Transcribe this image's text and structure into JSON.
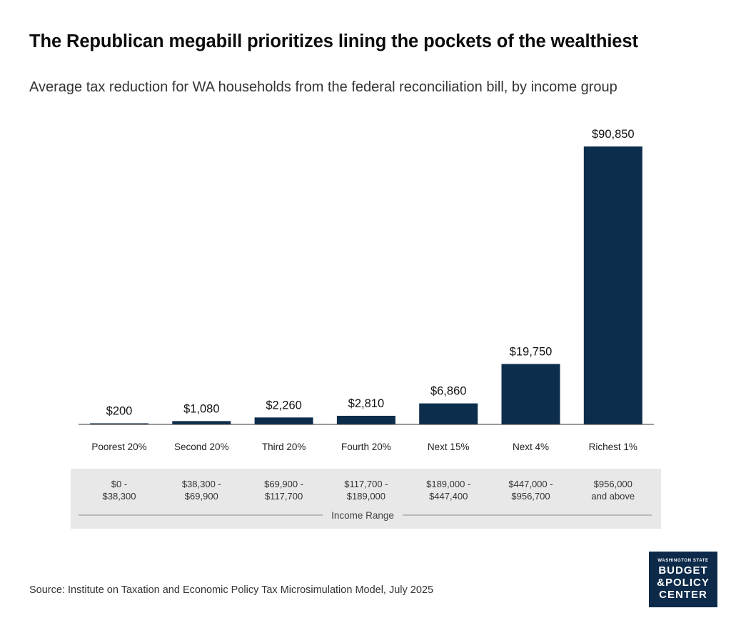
{
  "header": {
    "title": "The Republican megabill prioritizes lining the pockets of the wealthiest",
    "subtitle": "Average tax reduction for WA households from the federal reconciliation bill, by income group"
  },
  "chart_data": {
    "type": "bar",
    "title": "The Republican megabill prioritizes lining the pockets of the wealthiest",
    "subtitle": "Average tax reduction for WA households from the federal reconciliation bill, by income group",
    "categories": [
      "Poorest 20%",
      "Second 20%",
      "Third 20%",
      "Fourth 20%",
      "Next 15%",
      "Next 4%",
      "Richest 1%"
    ],
    "values": [
      200,
      1080,
      2260,
      2810,
      6860,
      19750,
      90850
    ],
    "value_labels": [
      "$200",
      "$1,080",
      "$2,260",
      "$2,810",
      "$6,860",
      "$19,750",
      "$90,850"
    ],
    "income_ranges": [
      [
        "$0 -",
        "$38,300"
      ],
      [
        "$38,300 -",
        "$69,900"
      ],
      [
        "$69,900 -",
        "$117,700"
      ],
      [
        "$117,700 -",
        "$189,000"
      ],
      [
        "$189,000 -",
        "$447,400"
      ],
      [
        "$447,000 -",
        "$956,700"
      ],
      [
        "$956,000",
        "and above"
      ]
    ],
    "income_range_label": "Income Range",
    "xlabel": "",
    "ylabel": "",
    "ylim": [
      0,
      92000
    ],
    "grid": false,
    "bar_color": "#0d2d4d"
  },
  "footer": {
    "source": "Source: Institute on Taxation and Economic Policy Tax Microsimulation Model, July 2025",
    "logo_small": "WASHINGTON STATE",
    "logo_line1": "BUDGET",
    "logo_line2": "&POLICY",
    "logo_line3": "CENTER"
  },
  "colors": {
    "bar": "#0d2d4d",
    "range_band": "#e8e8e8",
    "axis": "#333333",
    "logo_bg": "#0d2a4a"
  }
}
